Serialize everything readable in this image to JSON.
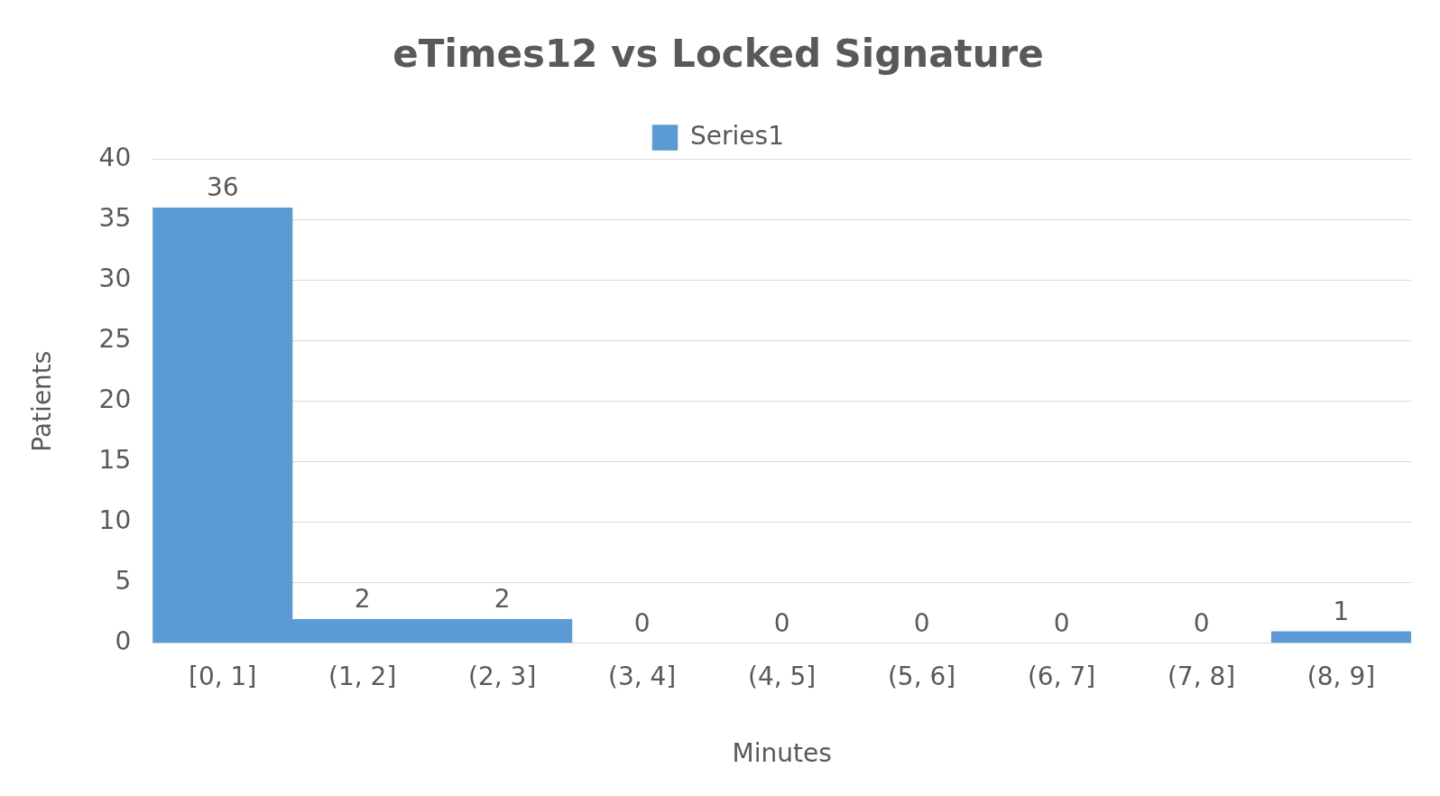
{
  "chart_data": {
    "type": "bar",
    "title": "eTimes12 vs Locked Signature",
    "xlabel": "Minutes",
    "ylabel": "Patients",
    "categories": [
      "[0, 1]",
      "(1, 2]",
      "(2, 3]",
      "(3, 4]",
      "(4, 5]",
      "(5, 6]",
      "(6, 7]",
      "(7, 8]",
      "(8, 9]"
    ],
    "series": [
      {
        "name": "Series1",
        "color": "#5b9bd5",
        "values": [
          36,
          2,
          2,
          0,
          0,
          0,
          0,
          0,
          1
        ]
      }
    ],
    "ylim": [
      0,
      40
    ],
    "yticks": [
      0,
      5,
      10,
      15,
      20,
      25,
      30,
      35,
      40
    ],
    "grid": "y",
    "legend": "top",
    "data_labels": true
  }
}
